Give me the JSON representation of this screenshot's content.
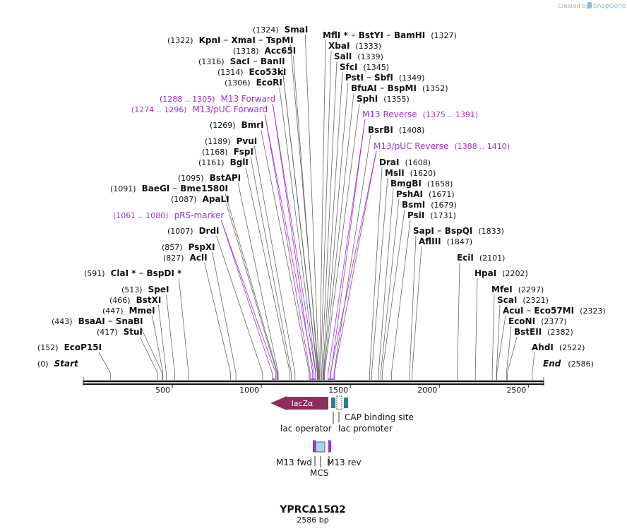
{
  "header": {
    "created_by": "Created by",
    "brand": "SnapGene"
  },
  "map": {
    "lim": [
      0,
      2586
    ],
    "ticks": [
      500,
      1000,
      1500,
      2000,
      2500
    ],
    "start": {
      "name": "Start",
      "site": {
        "value": 0,
        "label": "(0)"
      }
    },
    "end": {
      "name": "End",
      "site": {
        "value": 2586,
        "label": "(2586)"
      }
    },
    "left_labels": [
      {
        "names": [
          "SmaI"
        ],
        "site": {
          "value": 1324,
          "label": "(1324)"
        }
      },
      {
        "names": [
          "KpnI",
          "XmaI",
          "TspMI"
        ],
        "site": {
          "value": 1322,
          "label": "(1322)"
        }
      },
      {
        "names": [
          "Acc65I"
        ],
        "site": {
          "value": 1318,
          "label": "(1318)"
        }
      },
      {
        "names": [
          "SacI",
          "BanII"
        ],
        "site": {
          "value": 1316,
          "label": "(1316)"
        }
      },
      {
        "names": [
          "Eco53kI"
        ],
        "site": {
          "value": 1314,
          "label": "(1314)"
        }
      },
      {
        "names": [
          "EcoRI"
        ],
        "site": {
          "value": 1306,
          "label": "(1306)"
        }
      },
      {
        "primer": "M13 Forward",
        "range": {
          "start": 1288,
          "end": 1305,
          "label": "(1288 .. 1305)"
        }
      },
      {
        "primer": "M13/pUC Forward",
        "range": {
          "start": 1274,
          "end": 1296,
          "label": "(1274 .. 1296)"
        }
      },
      {
        "names": [
          "BmrI"
        ],
        "site": {
          "value": 1269,
          "label": "(1269)"
        }
      },
      {
        "names": [
          "PvuI"
        ],
        "site": {
          "value": 1189,
          "label": "(1189)"
        }
      },
      {
        "names": [
          "FspI"
        ],
        "site": {
          "value": 1168,
          "label": "(1168)"
        }
      },
      {
        "names": [
          "BglI"
        ],
        "site": {
          "value": 1161,
          "label": "(1161)"
        }
      },
      {
        "names": [
          "BstAPI"
        ],
        "site": {
          "value": 1095,
          "label": "(1095)"
        }
      },
      {
        "names": [
          "BaeGI",
          "Bme1580I"
        ],
        "site": {
          "value": 1091,
          "label": "(1091)"
        }
      },
      {
        "names": [
          "ApaLI"
        ],
        "site": {
          "value": 1087,
          "label": "(1087)"
        }
      },
      {
        "primer": "pRS-marker",
        "range": {
          "start": 1061,
          "end": 1080,
          "label": "(1061 .. 1080)"
        }
      },
      {
        "names": [
          "DrdI"
        ],
        "site": {
          "value": 1007,
          "label": "(1007)"
        }
      },
      {
        "names": [
          "PspXI"
        ],
        "site": {
          "value": 857,
          "label": "(857)"
        }
      },
      {
        "names": [
          "AclI"
        ],
        "site": {
          "value": 827,
          "label": "(827)"
        }
      },
      {
        "names": [
          "ClaI *",
          "BspDI *"
        ],
        "site": {
          "value": 591,
          "label": "(591)"
        }
      },
      {
        "names": [
          "SpeI"
        ],
        "site": {
          "value": 513,
          "label": "(513)"
        }
      },
      {
        "names": [
          "BstXI"
        ],
        "site": {
          "value": 466,
          "label": "(466)"
        }
      },
      {
        "names": [
          "MmeI"
        ],
        "site": {
          "value": 447,
          "label": "(447)"
        }
      },
      {
        "names": [
          "BsaAI",
          "SnaBI"
        ],
        "site": {
          "value": 443,
          "label": "(443)"
        }
      },
      {
        "names": [
          "StuI"
        ],
        "site": {
          "value": 417,
          "label": "(417)"
        }
      },
      {
        "names": [
          "EcoP15I"
        ],
        "site": {
          "value": 152,
          "label": "(152)"
        }
      }
    ],
    "right_labels": [
      {
        "names": [
          "MflI *",
          "BstYI",
          "BamHI"
        ],
        "site": {
          "value": 1327,
          "label": "(1327)"
        }
      },
      {
        "names": [
          "XbaI"
        ],
        "site": {
          "value": 1333,
          "label": "(1333)"
        }
      },
      {
        "names": [
          "SalI"
        ],
        "site": {
          "value": 1339,
          "label": "(1339)"
        }
      },
      {
        "names": [
          "SfcI"
        ],
        "site": {
          "value": 1345,
          "label": "(1345)"
        }
      },
      {
        "names": [
          "PstI",
          "SbfI"
        ],
        "site": {
          "value": 1349,
          "label": "(1349)"
        }
      },
      {
        "names": [
          "BfuAI",
          "BspMI"
        ],
        "site": {
          "value": 1352,
          "label": "(1352)"
        }
      },
      {
        "names": [
          "SphI"
        ],
        "site": {
          "value": 1355,
          "label": "(1355)"
        }
      },
      {
        "primer": "M13 Reverse",
        "range": {
          "start": 1375,
          "end": 1391,
          "label": "(1375 .. 1391)"
        }
      },
      {
        "names": [
          "BsrBI"
        ],
        "site": {
          "value": 1408,
          "label": "(1408)"
        }
      },
      {
        "primer": "M13/pUC Reverse",
        "range": {
          "start": 1388,
          "end": 1410,
          "label": "(1388 .. 1410)"
        }
      },
      {
        "names": [
          "DraI"
        ],
        "site": {
          "value": 1608,
          "label": "(1608)"
        }
      },
      {
        "names": [
          "MslI"
        ],
        "site": {
          "value": 1620,
          "label": "(1620)"
        }
      },
      {
        "names": [
          "BmgBI"
        ],
        "site": {
          "value": 1658,
          "label": "(1658)"
        }
      },
      {
        "names": [
          "PshAI"
        ],
        "site": {
          "value": 1671,
          "label": "(1671)"
        }
      },
      {
        "names": [
          "BsmI"
        ],
        "site": {
          "value": 1679,
          "label": "(1679)"
        }
      },
      {
        "names": [
          "PsiI"
        ],
        "site": {
          "value": 1731,
          "label": "(1731)"
        }
      },
      {
        "names": [
          "SapI",
          "BspQI"
        ],
        "site": {
          "value": 1833,
          "label": "(1833)"
        }
      },
      {
        "names": [
          "AflIII"
        ],
        "site": {
          "value": 1847,
          "label": "(1847)"
        }
      },
      {
        "names": [
          "EciI"
        ],
        "site": {
          "value": 2101,
          "label": "(2101)"
        }
      },
      {
        "names": [
          "HpaI"
        ],
        "site": {
          "value": 2202,
          "label": "(2202)"
        }
      },
      {
        "names": [
          "MfeI"
        ],
        "site": {
          "value": 2297,
          "label": "(2297)"
        }
      },
      {
        "names": [
          "ScaI"
        ],
        "site": {
          "value": 2321,
          "label": "(2321)"
        }
      },
      {
        "names": [
          "AcuI",
          "Eco57MI"
        ],
        "site": {
          "value": 2323,
          "label": "(2323)"
        }
      },
      {
        "names": [
          "EcoNI"
        ],
        "site": {
          "value": 2377,
          "label": "(2377)"
        }
      },
      {
        "names": [
          "BstEII"
        ],
        "site": {
          "value": 2382,
          "label": "(2382)"
        }
      },
      {
        "names": [
          "AhdI"
        ],
        "site": {
          "value": 2522,
          "label": "(2522)"
        }
      }
    ]
  },
  "features": {
    "lacz": "lacZα",
    "lac_operator": "lac operator",
    "cap_site": "CAP binding site",
    "lac_promoter": "lac promoter",
    "m13_fwd": "M13 fwd",
    "m13_rev": "M13 rev",
    "mcs": "MCS"
  },
  "footer": {
    "title": "YPRCΔ15Ω2",
    "length": "2586 bp"
  }
}
